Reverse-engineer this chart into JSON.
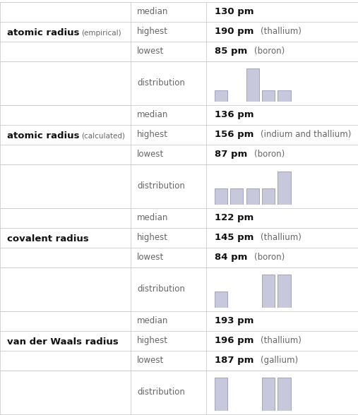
{
  "sections": [
    {
      "title": "atomic radius",
      "title_suffix": "(empirical)",
      "median": "130 pm",
      "highest": "190 pm",
      "highest_extra": "(thallium)",
      "lowest": "85 pm",
      "lowest_extra": "(boron)",
      "hist_bars": [
        1,
        0,
        3,
        1,
        1
      ],
      "hist_x": [
        0,
        1,
        2,
        3,
        4
      ]
    },
    {
      "title": "atomic radius",
      "title_suffix": "(calculated)",
      "median": "136 pm",
      "highest": "156 pm",
      "highest_extra": "(indium and thallium)",
      "lowest": "87 pm",
      "lowest_extra": "(boron)",
      "hist_bars": [
        1,
        1,
        1,
        1,
        2
      ],
      "hist_x": [
        0,
        1,
        2,
        3,
        4
      ]
    },
    {
      "title": "covalent radius",
      "title_suffix": "",
      "median": "122 pm",
      "highest": "145 pm",
      "highest_extra": "(thallium)",
      "lowest": "84 pm",
      "lowest_extra": "(boron)",
      "hist_bars": [
        1,
        0,
        0,
        2,
        2
      ],
      "hist_x": [
        0,
        1,
        2,
        3,
        4
      ]
    },
    {
      "title": "van der Waals radius",
      "title_suffix": "",
      "median": "193 pm",
      "highest": "196 pm",
      "highest_extra": "(thallium)",
      "lowest": "187 pm",
      "lowest_extra": "(gallium)",
      "hist_bars": [
        1,
        0,
        0,
        1,
        1
      ],
      "hist_x": [
        0,
        1,
        2,
        3,
        4
      ]
    }
  ],
  "bar_color": "#c8c8dc",
  "bar_edge_color": "#9898b8",
  "line_color": "#cccccc",
  "bg_color": "#ffffff",
  "c1x": 0.0,
  "c2x": 0.365,
  "c3x": 0.575,
  "fig_w": 5.07,
  "fig_h": 5.88
}
